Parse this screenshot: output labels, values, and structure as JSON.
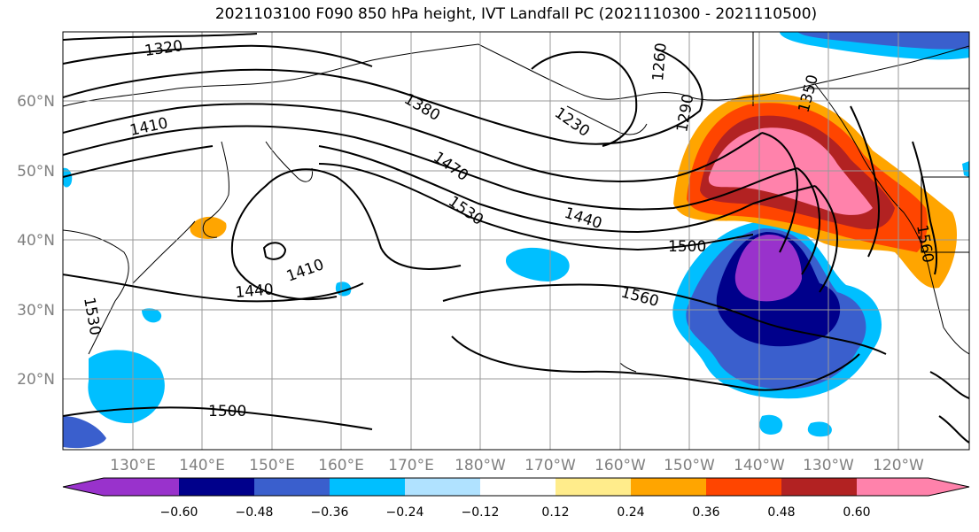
{
  "title": "2021103100 F090 850 hPa height, IVT Landfall PC (2021110300 - 2021110500)",
  "lat_labels": [
    "60°N",
    "50°N",
    "40°N",
    "30°N",
    "20°N"
  ],
  "lon_labels": [
    "130°E",
    "140°E",
    "150°E",
    "160°E",
    "170°E",
    "180°W",
    "170°W",
    "160°W",
    "150°W",
    "140°W",
    "130°W",
    "120°W"
  ],
  "contour_labels": [
    "1320",
    "1410",
    "1380",
    "1230",
    "1260",
    "1290",
    "1350",
    "1470",
    "1530",
    "1440",
    "1500",
    "1560",
    "1440",
    "1410",
    "1530",
    "1500",
    "1560"
  ],
  "colorbar": {
    "colors": [
      "#9932cc",
      "#00008b",
      "#3a5fcd",
      "#00bfff",
      "#b0e2ff",
      "#ffffff",
      "#ffec8b",
      "#ffa500",
      "#ff4500",
      "#b22222",
      "#ff82ab"
    ],
    "tick_labels": [
      "−0.60",
      "−0.48",
      "−0.36",
      "−0.24",
      "−0.12",
      "0.12",
      "0.24",
      "0.36",
      "0.48",
      "0.60"
    ]
  },
  "colors": {
    "neg_strong": "#9932cc",
    "neg_dark": "#00008b",
    "neg_mid": "#3a5fcd",
    "neg_light": "#00bfff",
    "neg_pale": "#b0e2ff",
    "pos_pale": "#ffec8b",
    "pos_mid": "#ffa500",
    "pos_strong": "#ff4500",
    "pos_dark": "#b22222",
    "pos_max": "#ff82ab",
    "axis_label": "#808080"
  }
}
